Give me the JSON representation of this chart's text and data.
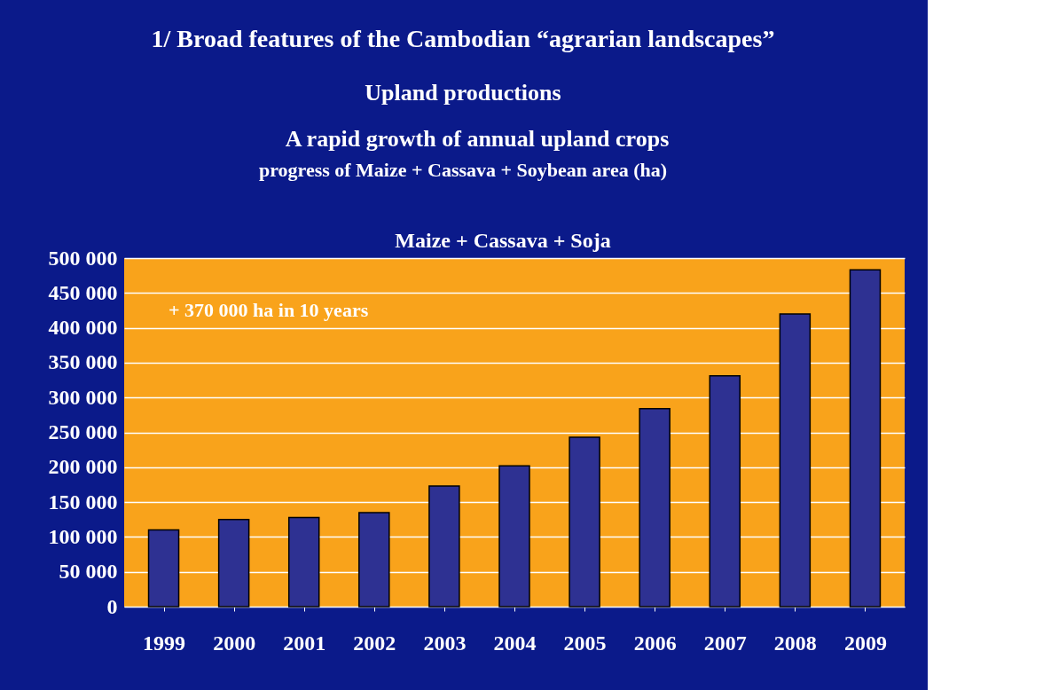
{
  "chart_data": {
    "type": "bar",
    "title": "1/ Broad features of the Cambodian “agrarian landscapes”",
    "subtitle": "Upland productions",
    "annotations": [
      "A rapid growth of annual upland crops",
      "progress of Maize + Cassava + Soybean area (ha)",
      "Maize + Cassava + Soja",
      "+ 370 000 ha in 10 years"
    ],
    "categories": [
      "1999",
      "2000",
      "2001",
      "2002",
      "2003",
      "2004",
      "2005",
      "2006",
      "2007",
      "2008",
      "2009"
    ],
    "values": [
      110000,
      125000,
      128000,
      135000,
      173000,
      202000,
      243000,
      284000,
      331000,
      420000,
      483000
    ],
    "color": "#2e3192",
    "ylim": [
      0,
      500000
    ],
    "yticks": [
      {
        "value": 0,
        "label": "0"
      },
      {
        "value": 50000,
        "label": "50 000"
      },
      {
        "value": 100000,
        "label": "100 000"
      },
      {
        "value": 150000,
        "label": "150 000"
      },
      {
        "value": 200000,
        "label": "200 000"
      },
      {
        "value": 250000,
        "label": "250 000"
      },
      {
        "value": 300000,
        "label": "300 000"
      },
      {
        "value": 350000,
        "label": "350 000"
      },
      {
        "value": 400000,
        "label": "400 000"
      },
      {
        "value": 450000,
        "label": "450 000"
      },
      {
        "value": 500000,
        "label": "500 000"
      }
    ],
    "grid": "y"
  }
}
